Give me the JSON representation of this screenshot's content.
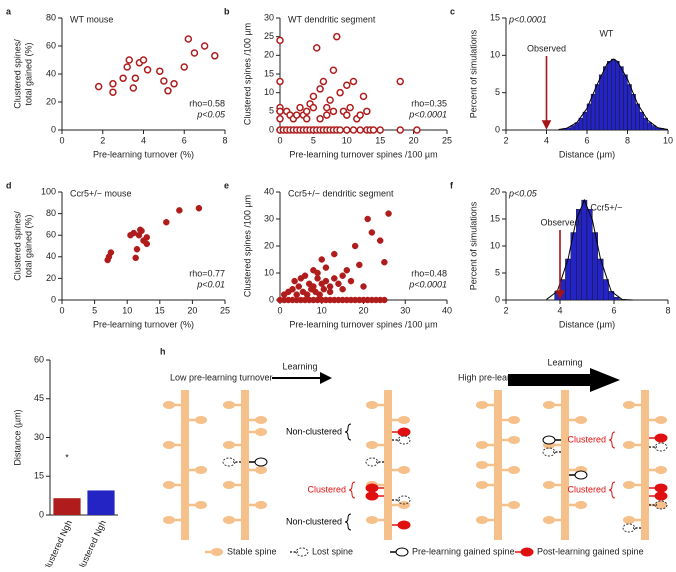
{
  "chart_data": [
    {
      "panel": "a",
      "type": "scatter",
      "title": "WT mouse",
      "xlabel": "Pre-learning turnover (%)",
      "ylabel": [
        "Clustered spines/",
        "total gained (%)"
      ],
      "xlim": [
        0,
        8
      ],
      "xticks": [
        0,
        2,
        4,
        6,
        8
      ],
      "ylim": [
        0,
        80
      ],
      "yticks": [
        0,
        20,
        40,
        60,
        80
      ],
      "color": "#b01c1c",
      "marker": "open",
      "annotations": [
        "rho=0.58",
        "p<0.05"
      ],
      "x": [
        1.8,
        2.5,
        2.5,
        3.0,
        3.2,
        3.3,
        3.5,
        3.6,
        3.8,
        4.0,
        4.2,
        4.8,
        5.0,
        5.2,
        5.5,
        6.0,
        6.2,
        6.5,
        7.0,
        7.5
      ],
      "y": [
        31,
        27,
        33,
        37,
        45,
        50,
        30,
        37,
        48,
        50,
        43,
        42,
        35,
        28,
        33,
        45,
        65,
        55,
        60,
        53
      ]
    },
    {
      "panel": "b",
      "type": "scatter",
      "title": "WT dendritic segment",
      "xlabel": "Pre-learning turnover spines /100 µm",
      "ylabel": "Clustered spines /100 µm",
      "xlim": [
        0,
        25
      ],
      "xticks": [
        0,
        5,
        10,
        15,
        20,
        25
      ],
      "ylim": [
        0,
        30
      ],
      "yticks": [
        0,
        5,
        10,
        15,
        20,
        25,
        30
      ],
      "color": "#b01c1c",
      "marker": "open",
      "annotations": [
        "rho=0.35",
        "p<0.0001"
      ],
      "x": [
        0,
        0,
        0,
        0,
        0,
        0,
        0.5,
        1,
        1,
        1.5,
        1.5,
        2,
        2,
        2.5,
        2.5,
        3,
        3,
        3.5,
        3.5,
        4,
        4,
        4,
        4.5,
        4.5,
        5,
        5,
        5,
        5.5,
        5.5,
        6,
        6,
        6,
        6.5,
        6.5,
        7,
        7,
        7,
        7.5,
        7.5,
        8,
        8,
        8,
        8.5,
        8.5,
        9,
        9,
        9.5,
        10,
        10,
        10,
        10.5,
        11,
        11,
        11.5,
        12,
        12,
        12.5,
        13,
        13,
        13.5,
        14,
        15,
        18,
        18,
        20.5
      ],
      "y": [
        0,
        24,
        13,
        6,
        5,
        3,
        0,
        0,
        5,
        0,
        4,
        0,
        3,
        0,
        4,
        0,
        6,
        0,
        4,
        0,
        5,
        3,
        0,
        7,
        0,
        6,
        9,
        0,
        22,
        0,
        3,
        11,
        0,
        13,
        0,
        6,
        4,
        0,
        8,
        0,
        5,
        16,
        0,
        25,
        0,
        10,
        5,
        0,
        4,
        12,
        6,
        0,
        13,
        3,
        0,
        4,
        9,
        0,
        5,
        0,
        0,
        0,
        0,
        13,
        0
      ]
    },
    {
      "panel": "c",
      "type": "histogram",
      "title": "WT",
      "stat": "p<0.0001",
      "xlabel": "Distance (µm)",
      "ylabel": "Percent of simulations",
      "xlim": [
        2,
        10
      ],
      "xticks": [
        2,
        4,
        6,
        8,
        10
      ],
      "ylim": [
        0,
        15
      ],
      "yticks": [
        0,
        5,
        10,
        15
      ],
      "color": "#2424c4",
      "bins": [
        4.8,
        5.0,
        5.2,
        5.4,
        5.6,
        5.8,
        6.0,
        6.2,
        6.4,
        6.6,
        6.8,
        7.0,
        7.2,
        7.4,
        7.6,
        7.8,
        8.0,
        8.2,
        8.4,
        8.6,
        8.8,
        9.0,
        9.2,
        9.4,
        9.6,
        9.8
      ],
      "counts": [
        0.2,
        0.3,
        0.6,
        1.0,
        1.6,
        2.4,
        3.5,
        4.8,
        6.1,
        7.4,
        8.5,
        9.2,
        9.5,
        9.2,
        8.5,
        7.4,
        6.1,
        4.8,
        3.5,
        2.4,
        1.6,
        1.0,
        0.6,
        0.3,
        0.2
      ],
      "fit": {
        "x": [
          4.6,
          5.0,
          5.5,
          6.0,
          6.5,
          7.0,
          7.3,
          7.5,
          8.0,
          8.5,
          9.0,
          9.5,
          10.0
        ],
        "y": [
          0.06,
          0.24,
          1.0,
          2.9,
          6.1,
          8.9,
          9.5,
          9.2,
          6.8,
          3.5,
          1.3,
          0.3,
          0.06
        ]
      },
      "observed": {
        "label": "Observed",
        "x": 4
      }
    },
    {
      "panel": "d",
      "type": "scatter",
      "title": "Ccr5+/− mouse",
      "xlabel": "Pre-learning turnover (%)",
      "ylabel": [
        "Clustered spines/",
        "total gained (%)"
      ],
      "xlim": [
        0,
        25
      ],
      "xticks": [
        0,
        5,
        10,
        15,
        20,
        25
      ],
      "ylim": [
        0,
        100
      ],
      "yticks": [
        0,
        20,
        40,
        60,
        80,
        100
      ],
      "color": "#b01c1c",
      "marker": "filled",
      "annotations": [
        "rho=0.77",
        "p<0.01"
      ],
      "x": [
        7,
        7.2,
        7.5,
        10.5,
        11,
        11.3,
        11.5,
        11.8,
        12,
        12.2,
        12.5,
        13,
        13,
        16,
        18,
        21
      ],
      "y": [
        37,
        40,
        44,
        60,
        62,
        39,
        47,
        60,
        65,
        64,
        55,
        58,
        52,
        72,
        83,
        85
      ]
    },
    {
      "panel": "e",
      "type": "scatter",
      "title": "Ccr5+/− dendritic segment",
      "xlabel": "Pre-learning turnover spines /100 µm",
      "ylabel": "Clustered spines /100 µm",
      "xlim": [
        0,
        40
      ],
      "xticks": [
        0,
        10,
        20,
        30,
        40
      ],
      "ylim": [
        0,
        40
      ],
      "yticks": [
        0,
        10,
        20,
        30,
        40
      ],
      "color": "#b01c1c",
      "marker": "filled",
      "annotations": [
        "rho=0.48",
        "p<0.0001"
      ],
      "x": [
        0,
        1,
        2,
        3,
        4,
        5,
        6,
        7,
        8,
        9,
        10,
        11,
        12,
        13,
        14,
        15,
        16,
        17,
        18,
        19,
        20,
        21,
        22,
        23,
        24,
        25,
        1,
        2,
        3,
        3.5,
        4,
        4.5,
        5,
        5.5,
        6,
        6.5,
        7,
        7.5,
        8,
        8,
        8.5,
        9,
        9,
        9.5,
        10,
        10,
        10.5,
        11,
        11,
        12,
        12,
        13,
        13,
        14,
        15,
        15,
        16,
        17,
        18,
        19,
        20,
        21,
        22,
        24,
        25,
        26
      ],
      "y": [
        0,
        0,
        0,
        0,
        0,
        0,
        0,
        0,
        0,
        0,
        0,
        0,
        0,
        0,
        0,
        0,
        0,
        0,
        0,
        0,
        0,
        0,
        0,
        0,
        0,
        0,
        2,
        3,
        4,
        7,
        2,
        5,
        8,
        3,
        9,
        2,
        6,
        4,
        11,
        5,
        3,
        8,
        10,
        2,
        15,
        6,
        4,
        7,
        12,
        3,
        5,
        8,
        17,
        6,
        9,
        4,
        11,
        7,
        20,
        13,
        5,
        30,
        25,
        22,
        14,
        32
      ]
    },
    {
      "panel": "f",
      "type": "histogram",
      "title": "Ccr5+/−",
      "stat": "p<0.05",
      "xlabel": "Distance (µm)",
      "ylabel": "Percent of simulations",
      "xlim": [
        2,
        8
      ],
      "xticks": [
        2,
        4,
        6,
        8
      ],
      "ylim": [
        0,
        20
      ],
      "yticks": [
        0,
        5,
        10,
        15,
        20
      ],
      "color": "#2424c4",
      "bins": [
        3.8,
        4.0,
        4.2,
        4.4,
        4.6,
        4.8,
        5.0,
        5.2,
        5.4,
        5.6,
        5.8,
        6.0,
        6.2,
        6.4
      ],
      "counts": [
        1.6,
        3.8,
        7.6,
        12.5,
        16.8,
        18.5,
        16.8,
        12.5,
        7.6,
        3.8,
        1.6,
        0.5,
        0.1
      ],
      "fit": {
        "x": [
          3.5,
          3.9,
          4.3,
          4.6,
          4.9,
          5.2,
          5.5,
          5.9,
          6.3,
          6.7
        ],
        "y": [
          0.1,
          1.6,
          7.6,
          14.8,
          18.5,
          14.8,
          7.6,
          1.6,
          0.1,
          0.0
        ]
      },
      "observed": {
        "label": "Observed",
        "x": 4
      }
    },
    {
      "panel": "g",
      "type": "bar",
      "ylabel": "Distance (µm)",
      "ylim": [
        0,
        60
      ],
      "yticks": [
        0,
        15,
        30,
        45,
        60
      ],
      "categories": [
        "Clustered Ngh",
        "Non-clustered Ngh"
      ],
      "values": [
        6.5,
        9.5
      ],
      "colors": [
        "#b01c1c",
        "#2424c4"
      ],
      "annotation": "*"
    }
  ],
  "diagram": {
    "panel": "h",
    "low": "Low pre-learning turnover",
    "high": "High pre-learning turnover",
    "learning": [
      "Learning",
      "Learning"
    ],
    "callouts": [
      "Non-clustered",
      "Clustered",
      "Non-clustered",
      "Clustered",
      "Clustered"
    ],
    "legend": [
      "Stable spine",
      "Lost spine",
      "Pre-learning gained spine",
      "Post-learning gained spine"
    ]
  }
}
